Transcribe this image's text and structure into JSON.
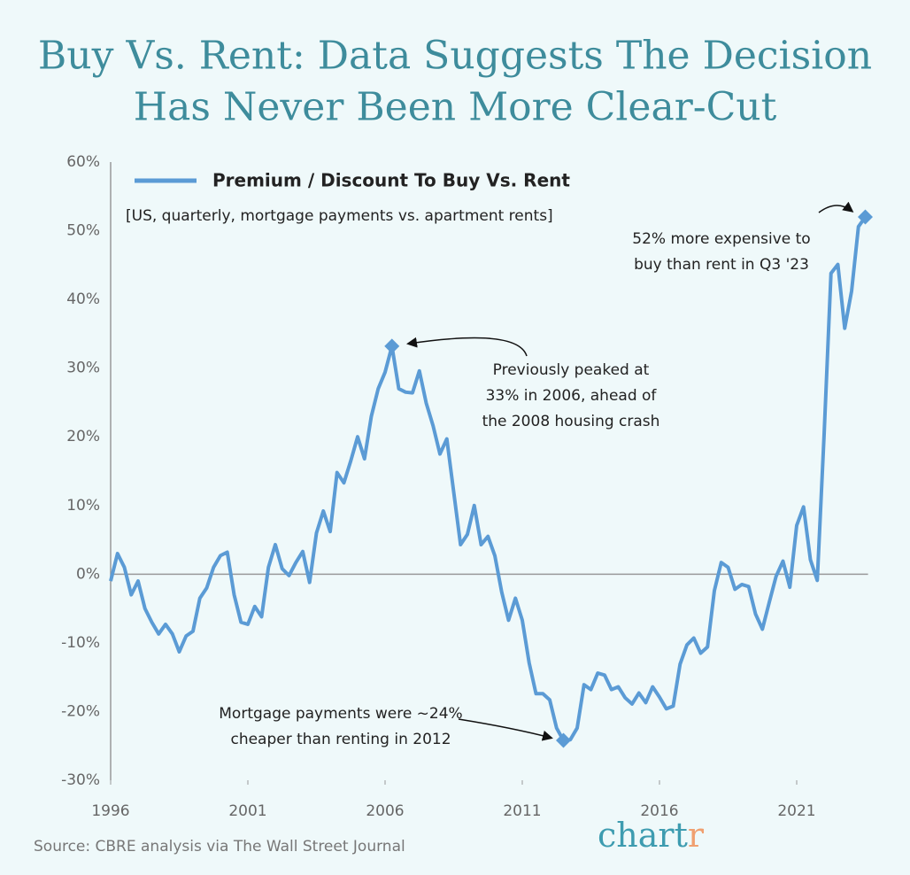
{
  "chart_data": {
    "type": "line",
    "title": [
      "Buy Vs. Rent: Data Suggests The Decision",
      "Has Never Been More Clear-Cut"
    ],
    "subtitle": "[US, quarterly, mortgage payments vs. apartment rents]",
    "source": "Source: CBRE analysis via The Wall Street Journal",
    "brand": [
      "chart",
      "r"
    ],
    "xlim": [
      1996,
      2023.6
    ],
    "xticks": [
      1996,
      2001,
      2006,
      2011,
      2016,
      2021
    ],
    "ylim": [
      -30,
      60
    ],
    "yticks": [
      {
        "value": -30,
        "label": "-30%"
      },
      {
        "value": -20,
        "label": "-20%"
      },
      {
        "value": -10,
        "label": "-10%"
      },
      {
        "value": 0,
        "label": "0%"
      },
      {
        "value": 10,
        "label": "10%"
      },
      {
        "value": 20,
        "label": "20%"
      },
      {
        "value": 30,
        "label": "30%"
      },
      {
        "value": 40,
        "label": "40%"
      },
      {
        "value": 50,
        "label": "50%"
      },
      {
        "value": 60,
        "label": "60%"
      }
    ],
    "legend": "upper left",
    "series": [
      {
        "name": "Premium / Discount To Buy Vs. Rent",
        "color": "#5b9bd5",
        "x": [
          1996,
          1996.25,
          1996.5,
          1996.75,
          1997,
          1997.25,
          1997.5,
          1997.75,
          1998,
          1998.25,
          1998.5,
          1998.75,
          1999,
          1999.25,
          1999.5,
          1999.75,
          2000,
          2000.25,
          2000.5,
          2000.75,
          2001,
          2001.25,
          2001.5,
          2001.75,
          2002,
          2002.25,
          2002.5,
          2002.75,
          2003,
          2003.25,
          2003.5,
          2003.75,
          2004,
          2004.25,
          2004.5,
          2004.75,
          2005,
          2005.25,
          2005.5,
          2005.75,
          2006,
          2006.25,
          2006.5,
          2006.75,
          2007,
          2007.25,
          2007.5,
          2007.75,
          2008,
          2008.25,
          2008.5,
          2008.75,
          2009,
          2009.25,
          2009.5,
          2009.75,
          2010,
          2010.25,
          2010.5,
          2010.75,
          2011,
          2011.25,
          2011.5,
          2011.75,
          2012,
          2012.25,
          2012.5,
          2012.75,
          2013,
          2013.25,
          2013.5,
          2013.75,
          2014,
          2014.25,
          2014.5,
          2014.75,
          2015,
          2015.25,
          2015.5,
          2015.75,
          2016,
          2016.25,
          2016.5,
          2016.75,
          2017,
          2017.25,
          2017.5,
          2017.75,
          2018,
          2018.25,
          2018.5,
          2018.75,
          2019,
          2019.25,
          2019.5,
          2019.75,
          2020,
          2020.25,
          2020.5,
          2020.75,
          2021,
          2021.25,
          2021.5,
          2021.75,
          2022,
          2022.25,
          2022.5,
          2022.75,
          2023,
          2023.25,
          2023.5
        ],
        "values": [
          -1,
          3,
          1,
          -3,
          -1,
          -5,
          -7,
          -8.7,
          -7.3,
          -8.7,
          -11.3,
          -9,
          -8.3,
          -3.5,
          -2,
          1,
          2.7,
          3.2,
          -3,
          -7,
          -7.3,
          -4.7,
          -6.2,
          1,
          4.3,
          0.8,
          -0.2,
          1.7,
          3.3,
          -1.2,
          6,
          9.2,
          6.2,
          14.8,
          13.3,
          16.5,
          20,
          16.8,
          23,
          27,
          29.4,
          33.2,
          27,
          26.5,
          26.4,
          29.6,
          24.9,
          21.6,
          17.5,
          19.7,
          12,
          4.3,
          5.8,
          10,
          4.3,
          5.5,
          2.7,
          -2.6,
          -6.7,
          -3.5,
          -6.7,
          -12.9,
          -17.4,
          -17.4,
          -18.3,
          -22.4,
          -24.2,
          -24.1,
          -22.4,
          -16.1,
          -16.8,
          -14.4,
          -14.7,
          -16.8,
          -16.4,
          -18,
          -18.9,
          -17.3,
          -18.7,
          -16.4,
          -17.9,
          -19.6,
          -19.2,
          -13.1,
          -10.3,
          -9.3,
          -11.5,
          -10.6,
          -2.4,
          1.7,
          1,
          -2.2,
          -1.5,
          -1.8,
          -5.8,
          -8,
          -4.1,
          -0.3,
          1.9,
          -1.9,
          7.1,
          9.8,
          2.1,
          -0.9,
          20.4,
          43.8,
          45.1,
          35.8,
          41.2,
          50.6,
          52
        ]
      }
    ],
    "annotations": [
      {
        "text": [
          "52% more expensive to",
          "buy than rent in Q3 '23"
        ],
        "point": 110
      },
      {
        "text": [
          "Previously peaked at",
          "33% in 2006, ahead of",
          "the 2008 housing crash"
        ],
        "point": 41
      },
      {
        "text": [
          "Mortgage payments were ~24%",
          "cheaper than renting in 2012"
        ],
        "point": 66
      }
    ]
  }
}
